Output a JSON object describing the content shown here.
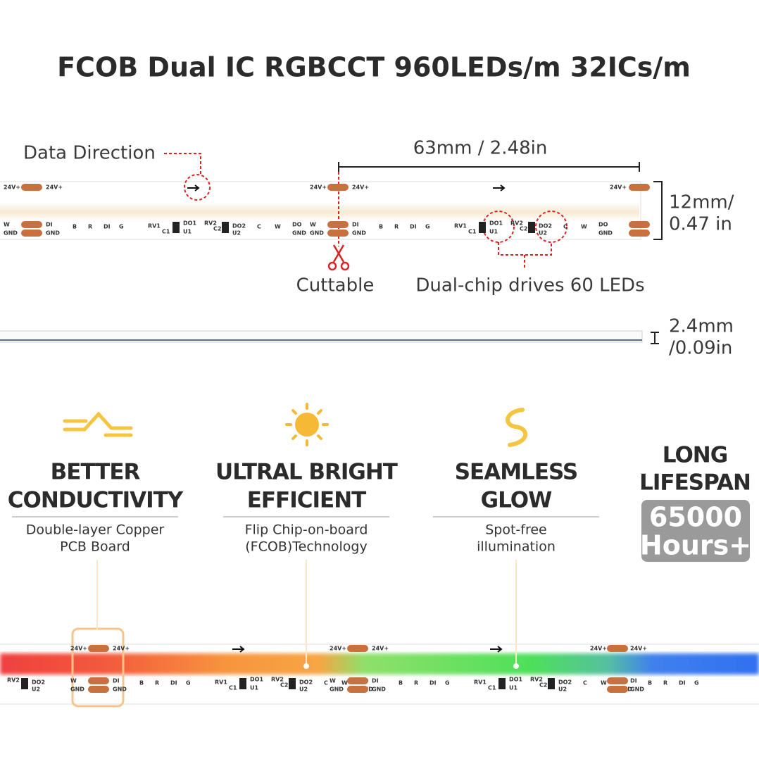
{
  "title": "FCOB Dual IC RGBCCT 960LEDs/m 32ICs/m",
  "diagram": {
    "data_direction": "Data Direction",
    "length": "63mm / 2.48in",
    "width": [
      "12mm/",
      "0.47 in"
    ],
    "cuttable": "Cuttable",
    "dual_chip": "Dual-chip drives 60 LEDs",
    "thickness": [
      "2.4mm",
      "/0.09in"
    ]
  },
  "strip_labels": {
    "power": "24V+",
    "gnd": "GND",
    "di": "DI",
    "do": "DO",
    "w": "W",
    "b": "B",
    "r": "R",
    "g": "G",
    "c": "C",
    "rv1": "RV1",
    "rv2": "RV2",
    "c1": "C1",
    "c2": "C2",
    "u1": "U1",
    "u2": "U2",
    "do1": "DO1",
    "do2": "DO2"
  },
  "features": [
    {
      "title": [
        "BETTER",
        "CONDUCTIVITY"
      ],
      "desc": [
        "Double-layer Copper",
        "PCB Board"
      ]
    },
    {
      "title": [
        "ULTRAL BRIGHT",
        "EFFICIENT"
      ],
      "desc": [
        "Flip Chip-on-board",
        "(FCOB)Technology"
      ]
    },
    {
      "title": [
        "SEAMLESS",
        "GLOW"
      ],
      "desc": [
        "Spot-free",
        "illumination"
      ]
    }
  ],
  "lifespan": {
    "title": [
      "LONG",
      "LIFESPAN"
    ],
    "value": [
      "65000",
      "Hours+"
    ]
  }
}
